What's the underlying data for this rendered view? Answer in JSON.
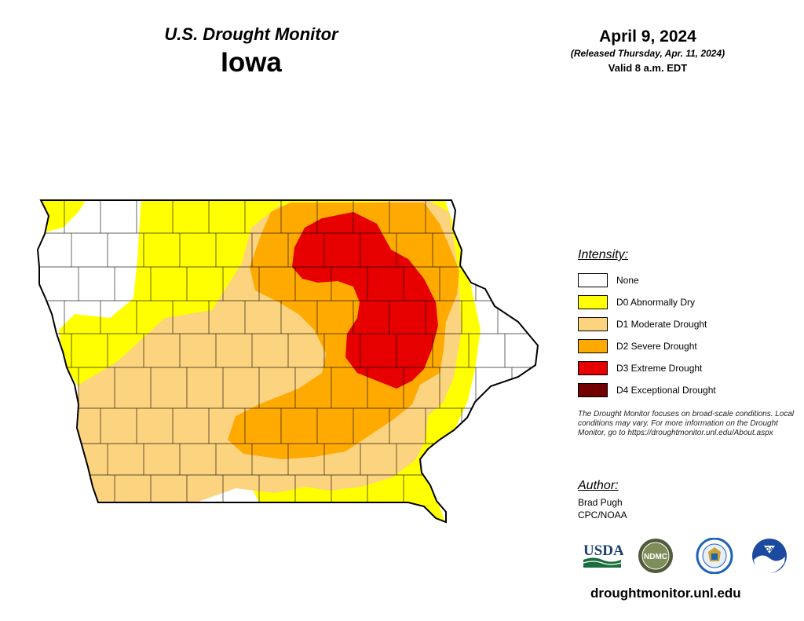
{
  "header": {
    "product": "U.S. Drought Monitor",
    "state": "Iowa",
    "date": "April 9, 2024",
    "released": "(Released Thursday, Apr. 11, 2024)",
    "valid": "Valid 8 a.m. EDT"
  },
  "legend": {
    "title": "Intensity:",
    "items": [
      {
        "label": "None",
        "color": "#ffffff"
      },
      {
        "label": "D0 Abnormally Dry",
        "color": "#ffff00"
      },
      {
        "label": "D1 Moderate Drought",
        "color": "#fcd37f"
      },
      {
        "label": "D2 Severe Drought",
        "color": "#ffaa00"
      },
      {
        "label": "D3 Extreme Drought",
        "color": "#e60000"
      },
      {
        "label": "D4 Exceptional Drought",
        "color": "#730000"
      }
    ]
  },
  "disclaimer": "The Drought Monitor focuses on broad-scale conditions. Local conditions may vary. For more information on the Drought Monitor, go to https://droughtmonitor.unl.edu/About.aspx",
  "author": {
    "title": "Author:",
    "name": "Brad Pugh",
    "org": "CPC/NOAA"
  },
  "logos": {
    "usda": "USDA",
    "ndmc": "NDMC",
    "noaa": "NOAA"
  },
  "site": "droughtmonitor.unl.edu"
}
